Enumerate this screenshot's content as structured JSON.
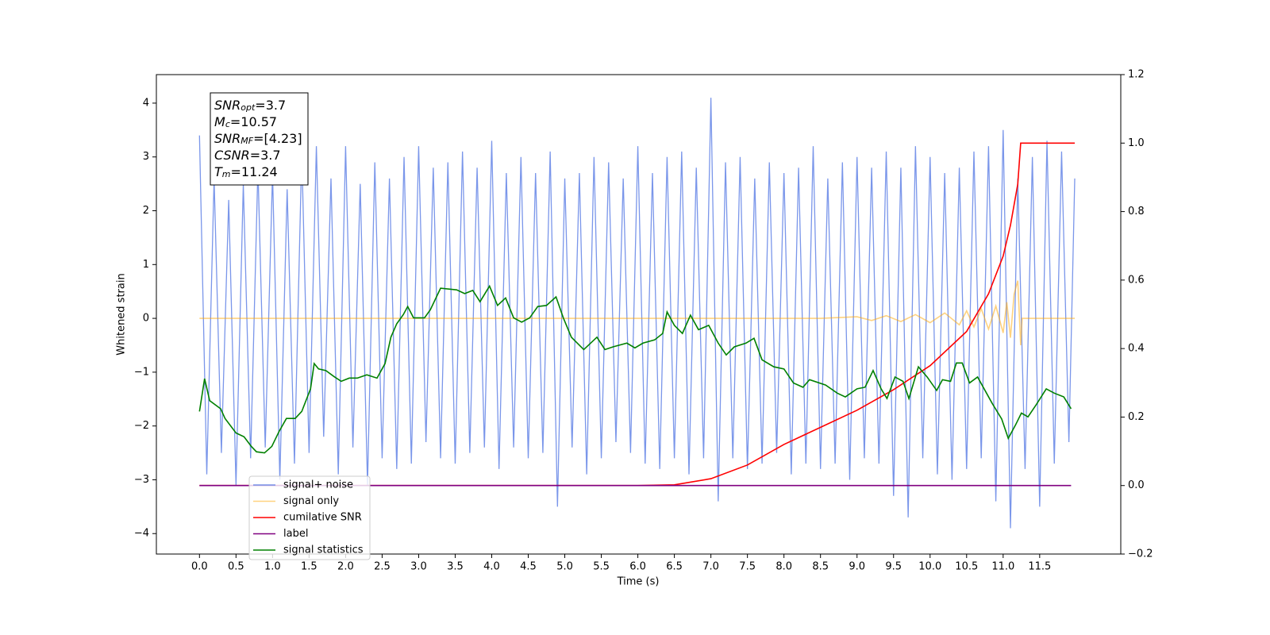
{
  "chart_data": {
    "type": "line",
    "xlabel": "Time (s)",
    "ylabel": "Whitened strain",
    "xlim": [
      -0.59,
      12.61
    ],
    "ylim": [
      -4.38,
      4.53
    ],
    "y2lim": [
      -0.2,
      1.2
    ],
    "xticks": [
      {
        "value": 0,
        "label": "0.0"
      },
      0.5,
      {
        "value": 1,
        "label": "1.0"
      },
      1.5,
      {
        "value": 2,
        "label": "2.0"
      },
      2.5,
      {
        "value": 3,
        "label": "3.0"
      },
      3.5,
      {
        "value": 4,
        "label": "4.0"
      },
      4.5,
      {
        "value": 5,
        "label": "5.0"
      },
      5.5,
      {
        "value": 6,
        "label": "6.0"
      },
      6.5,
      {
        "value": 7,
        "label": "7.0"
      },
      7.5,
      {
        "value": 8,
        "label": "8.0"
      },
      8.5,
      {
        "value": 9,
        "label": "9.0"
      },
      9.5,
      {
        "value": 10,
        "label": "10.0"
      },
      10.5,
      {
        "value": 11,
        "label": "11.0"
      },
      11.5
    ],
    "yticks": [
      {
        "value": -4,
        "label": "−4"
      },
      {
        "value": -3,
        "label": "−3"
      },
      {
        "value": -2,
        "label": "−2"
      },
      {
        "value": -1,
        "label": "−1"
      },
      0,
      1,
      2,
      3,
      4
    ],
    "y2ticks": [
      {
        "value": -0.2,
        "label": "−0.2"
      },
      {
        "value": 0,
        "label": "0.0"
      },
      0.2,
      0.4,
      0.6,
      0.8,
      {
        "value": 1,
        "label": "1.0"
      },
      1.2
    ],
    "grid": false,
    "legend": "lower left",
    "annotation": [
      {
        "base": "SNR",
        "sub": "opt",
        "text": "=3.7"
      },
      {
        "base": "M",
        "sub": "c",
        "text": "=10.57"
      },
      {
        "base": "SNR",
        "sub": "MF",
        "text": "=[4.23]"
      },
      {
        "base": "CSNR",
        "text": "=3.7"
      },
      {
        "base": "T",
        "sub": "m",
        "text": "=11.24"
      }
    ],
    "series": [
      {
        "name": "signal+ noise",
        "color": "#4169e1",
        "alpha": 0.7,
        "x": [
          0,
          0.1,
          0.2,
          0.3,
          0.4,
          0.5,
          0.6,
          0.7,
          0.8,
          0.9,
          1,
          1.1,
          1.2,
          1.3,
          1.4,
          1.5,
          1.6,
          1.7,
          1.8,
          1.9,
          2,
          2.1,
          2.2,
          2.3,
          2.4,
          2.5,
          2.6,
          2.7,
          2.8,
          2.9,
          3,
          3.1,
          3.2,
          3.3,
          3.4,
          3.5,
          3.6,
          3.7,
          3.8,
          3.9,
          4,
          4.1,
          4.2,
          4.3,
          4.4,
          4.5,
          4.6,
          4.7,
          4.8,
          4.9,
          5,
          5.1,
          5.2,
          5.3,
          5.4,
          5.5,
          5.6,
          5.7,
          5.8,
          5.9,
          6,
          6.1,
          6.2,
          6.3,
          6.4,
          6.5,
          6.6,
          6.7,
          6.8,
          6.9,
          7,
          7.1,
          7.2,
          7.3,
          7.4,
          7.5,
          7.6,
          7.7,
          7.8,
          7.9,
          8,
          8.1,
          8.2,
          8.3,
          8.4,
          8.5,
          8.6,
          8.7,
          8.8,
          8.9,
          9,
          9.1,
          9.2,
          9.3,
          9.4,
          9.5,
          9.6,
          9.7,
          9.8,
          9.9,
          10,
          10.1,
          10.2,
          10.3,
          10.4,
          10.5,
          10.6,
          10.7,
          10.8,
          10.9,
          11,
          11.1,
          11.2,
          11.3,
          11.4,
          11.5,
          11.6,
          11.7,
          11.8,
          11.9,
          11.98
        ],
        "values": [
          3.4,
          -2.9,
          2.6,
          -2.5,
          2.2,
          -3.1,
          2.5,
          -2.6,
          2.8,
          -2.4,
          2.7,
          -3.0,
          2.4,
          -2.7,
          3.1,
          -2.5,
          3.2,
          -2.2,
          2.6,
          -2.9,
          3.2,
          -2.4,
          2.5,
          -3.1,
          2.9,
          -2.6,
          2.6,
          -2.8,
          3.0,
          -2.7,
          3.2,
          -2.3,
          2.8,
          -2.6,
          2.9,
          -2.7,
          3.1,
          -2.5,
          2.8,
          -2.4,
          3.3,
          -2.8,
          2.7,
          -2.4,
          3.0,
          -2.6,
          2.7,
          -2.5,
          3.1,
          -3.5,
          2.6,
          -2.4,
          2.7,
          -2.9,
          3.0,
          -2.6,
          2.9,
          -2.3,
          2.6,
          -2.5,
          3.2,
          -2.7,
          2.7,
          -2.8,
          3.0,
          -2.6,
          3.1,
          -2.9,
          2.8,
          -2.6,
          4.1,
          -3.4,
          2.9,
          -2.6,
          3.0,
          -2.8,
          2.6,
          -2.7,
          2.9,
          -2.5,
          2.7,
          -2.9,
          2.8,
          -2.7,
          3.2,
          -2.8,
          2.6,
          -2.7,
          2.9,
          -3.0,
          3.0,
          -2.6,
          2.8,
          -2.7,
          3.1,
          -3.3,
          2.8,
          -3.7,
          3.2,
          -2.6,
          3.0,
          -2.9,
          2.7,
          -3.0,
          2.8,
          -2.8,
          3.1,
          -2.6,
          3.2,
          -3.4,
          3.5,
          -3.9,
          2.6,
          -2.8,
          3.0,
          -3.5,
          3.3,
          -2.7,
          3.1,
          -2.3,
          2.6
        ]
      },
      {
        "name": "signal only",
        "color": "#ffa500",
        "alpha": 0.5,
        "x": [
          0,
          8.5,
          9.0,
          9.2,
          9.4,
          9.6,
          9.8,
          10.0,
          10.2,
          10.4,
          10.5,
          10.6,
          10.7,
          10.8,
          10.9,
          11.0,
          11.05,
          11.1,
          11.15,
          11.2,
          11.24,
          11.26,
          11.98
        ],
        "values": [
          0,
          0,
          0.03,
          -0.04,
          0.05,
          -0.06,
          0.07,
          -0.08,
          0.1,
          -0.12,
          0.14,
          -0.16,
          0.18,
          -0.2,
          0.23,
          -0.27,
          0.3,
          -0.36,
          0.45,
          0.7,
          -0.5,
          0,
          0
        ]
      },
      {
        "name": "cumilative SNR",
        "color": "#ff0000",
        "alpha": 1,
        "axis": "y2",
        "x": [
          0,
          6.0,
          6.5,
          7.0,
          7.5,
          8.0,
          8.5,
          9.0,
          9.5,
          10.0,
          10.5,
          10.8,
          11.0,
          11.1,
          11.2,
          11.24,
          11.98
        ],
        "values": [
          0,
          0,
          0.002,
          0.02,
          0.06,
          0.12,
          0.17,
          0.22,
          0.28,
          0.35,
          0.45,
          0.56,
          0.67,
          0.76,
          0.88,
          1.0,
          1.0
        ]
      },
      {
        "name": "label",
        "color": "#800080",
        "alpha": 1,
        "axis": "y2",
        "x": [
          0,
          11.93
        ],
        "values": [
          0,
          0
        ]
      },
      {
        "name": "signal statistics",
        "color": "#008000",
        "alpha": 1,
        "x": [
          0,
          0.07,
          0.14,
          0.29,
          0.35,
          0.5,
          0.61,
          0.71,
          0.78,
          0.89,
          0.99,
          1.09,
          1.19,
          1.31,
          1.4,
          1.52,
          1.57,
          1.63,
          1.73,
          1.84,
          1.94,
          2.05,
          2.16,
          2.29,
          2.43,
          2.54,
          2.62,
          2.7,
          2.79,
          2.85,
          2.93,
          3.08,
          3.16,
          3.3,
          3.52,
          3.63,
          3.74,
          3.84,
          3.97,
          4.08,
          4.19,
          4.3,
          4.41,
          4.52,
          4.63,
          4.75,
          4.88,
          4.98,
          5.09,
          5.26,
          5.44,
          5.55,
          5.66,
          5.85,
          5.96,
          6.07,
          6.23,
          6.34,
          6.4,
          6.5,
          6.61,
          6.72,
          6.83,
          6.97,
          7.1,
          7.21,
          7.32,
          7.48,
          7.59,
          7.7,
          7.86,
          8.0,
          8.13,
          8.26,
          8.35,
          8.57,
          8.73,
          8.84,
          9.0,
          9.11,
          9.22,
          9.33,
          9.41,
          9.52,
          9.63,
          9.71,
          9.84,
          9.96,
          10.09,
          10.17,
          10.28,
          10.36,
          10.44,
          10.54,
          10.65,
          10.85,
          10.98,
          11.07,
          11.17,
          11.25,
          11.34,
          11.45,
          11.59,
          11.7,
          11.83,
          11.93
        ],
        "values": [
          -1.73,
          -1.12,
          -1.53,
          -1.68,
          -1.86,
          -2.13,
          -2.2,
          -2.38,
          -2.48,
          -2.5,
          -2.38,
          -2.1,
          -1.86,
          -1.86,
          -1.73,
          -1.31,
          -0.84,
          -0.94,
          -0.97,
          -1.08,
          -1.17,
          -1.11,
          -1.11,
          -1.05,
          -1.11,
          -0.84,
          -0.35,
          -0.1,
          0.07,
          0.22,
          0.01,
          0.01,
          0.16,
          0.56,
          0.53,
          0.46,
          0.52,
          0.31,
          0.6,
          0.24,
          0.38,
          0.01,
          -0.07,
          0.01,
          0.22,
          0.24,
          0.4,
          0.01,
          -0.35,
          -0.58,
          -0.35,
          -0.58,
          -0.53,
          -0.46,
          -0.55,
          -0.46,
          -0.4,
          -0.28,
          0.12,
          -0.13,
          -0.28,
          0.06,
          -0.21,
          -0.13,
          -0.46,
          -0.68,
          -0.53,
          -0.46,
          -0.37,
          -0.77,
          -0.9,
          -0.94,
          -1.2,
          -1.28,
          -1.14,
          -1.24,
          -1.39,
          -1.46,
          -1.31,
          -1.28,
          -0.97,
          -1.31,
          -1.49,
          -1.09,
          -1.17,
          -1.49,
          -0.9,
          -1.09,
          -1.34,
          -1.14,
          -1.17,
          -0.83,
          -0.83,
          -1.2,
          -1.09,
          -1.58,
          -1.87,
          -2.23,
          -1.98,
          -1.76,
          -1.83,
          -1.61,
          -1.31,
          -1.39,
          -1.46,
          -1.68
        ]
      }
    ]
  }
}
